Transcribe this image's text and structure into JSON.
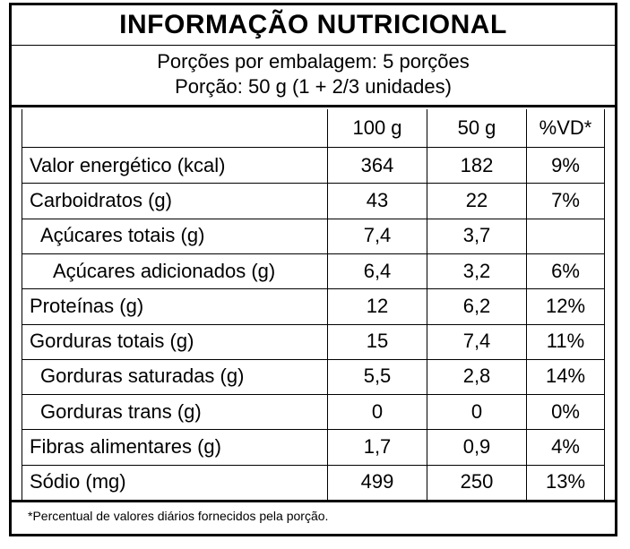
{
  "label": {
    "title": "INFORMAÇÃO NUTRICIONAL",
    "servings_per_package": "Porções por embalagem: 5 porções",
    "serving_size": "Porção: 50 g (1 + 2/3 unidades)",
    "columns": [
      "",
      "100 g",
      "50 g",
      "%VD*"
    ],
    "rows": [
      {
        "name": "Valor energético (kcal)",
        "per100": "364",
        "perServing": "182",
        "dv": "9%",
        "indent": 0
      },
      {
        "name": "Carboidratos (g)",
        "per100": "43",
        "perServing": "22",
        "dv": "7%",
        "indent": 0
      },
      {
        "name": "Açúcares totais (g)",
        "per100": "7,4",
        "perServing": "3,7",
        "dv": "",
        "indent": 1
      },
      {
        "name": "Açúcares adicionados (g)",
        "per100": "6,4",
        "perServing": "3,2",
        "dv": "6%",
        "indent": 2
      },
      {
        "name": "Proteínas (g)",
        "per100": "12",
        "perServing": "6,2",
        "dv": "12%",
        "indent": 0
      },
      {
        "name": "Gorduras totais (g)",
        "per100": "15",
        "perServing": "7,4",
        "dv": "11%",
        "indent": 0
      },
      {
        "name": "Gorduras saturadas (g)",
        "per100": "5,5",
        "perServing": "2,8",
        "dv": "14%",
        "indent": 1
      },
      {
        "name": "Gorduras trans (g)",
        "per100": "0",
        "perServing": "0",
        "dv": "0%",
        "indent": 1
      },
      {
        "name": "Fibras alimentares (g)",
        "per100": "1,7",
        "perServing": "0,9",
        "dv": "4%",
        "indent": 0
      },
      {
        "name": "Sódio (mg)",
        "per100": "499",
        "perServing": "250",
        "dv": "13%",
        "indent": 0
      }
    ],
    "footnote": "*Percentual de valores diários fornecidos pela porção."
  }
}
